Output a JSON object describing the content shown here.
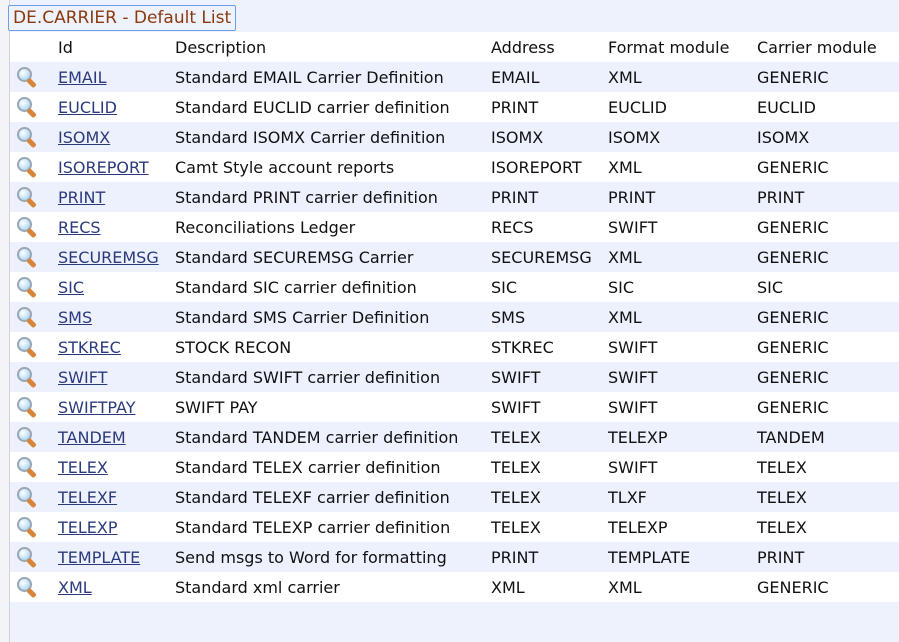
{
  "title": "DE.CARRIER - Default List",
  "columns": [
    "",
    "Id",
    "Description",
    "Address",
    "Format module",
    "Carrier module"
  ],
  "rows": [
    {
      "id": "EMAIL",
      "description": "Standard EMAIL Carrier Definition",
      "address": "EMAIL",
      "format": "XML",
      "carrier": "GENERIC"
    },
    {
      "id": "EUCLID",
      "description": "Standard EUCLID carrier definition",
      "address": "PRINT",
      "format": "EUCLID",
      "carrier": "EUCLID"
    },
    {
      "id": "ISOMX",
      "description": "Standard ISOMX Carrier definition",
      "address": "ISOMX",
      "format": "ISOMX",
      "carrier": "ISOMX"
    },
    {
      "id": "ISOREPORT",
      "description": "Camt Style account reports",
      "address": "ISOREPORT",
      "format": "XML",
      "carrier": "GENERIC"
    },
    {
      "id": "PRINT",
      "description": "Standard PRINT carrier definition",
      "address": "PRINT",
      "format": "PRINT",
      "carrier": "PRINT"
    },
    {
      "id": "RECS",
      "description": "Reconciliations Ledger",
      "address": "RECS",
      "format": "SWIFT",
      "carrier": "GENERIC"
    },
    {
      "id": "SECUREMSG",
      "description": "Standard SECUREMSG Carrier",
      "address": "SECUREMSG",
      "format": "XML",
      "carrier": "GENERIC"
    },
    {
      "id": "SIC",
      "description": "Standard SIC carrier definition",
      "address": "SIC",
      "format": "SIC",
      "carrier": "SIC"
    },
    {
      "id": "SMS",
      "description": "Standard SMS Carrier Definition",
      "address": "SMS",
      "format": "XML",
      "carrier": "GENERIC"
    },
    {
      "id": "STKREC",
      "description": "STOCK RECON",
      "address": "STKREC",
      "format": "SWIFT",
      "carrier": "GENERIC"
    },
    {
      "id": "SWIFT",
      "description": "Standard SWIFT carrier definition",
      "address": "SWIFT",
      "format": "SWIFT",
      "carrier": "GENERIC"
    },
    {
      "id": "SWIFTPAY",
      "description": "SWIFT PAY",
      "address": "SWIFT",
      "format": "SWIFT",
      "carrier": "GENERIC"
    },
    {
      "id": "TANDEM",
      "description": "Standard TANDEM carrier definition",
      "address": "TELEX",
      "format": "TELEXP",
      "carrier": "TANDEM"
    },
    {
      "id": "TELEX",
      "description": "Standard TELEX carrier definition",
      "address": "TELEX",
      "format": "SWIFT",
      "carrier": "TELEX"
    },
    {
      "id": "TELEXF",
      "description": "Standard TELEXF carrier definition",
      "address": "TELEX",
      "format": "TLXF",
      "carrier": "TELEX"
    },
    {
      "id": "TELEXP",
      "description": "Standard TELEXP carrier definition",
      "address": "TELEX",
      "format": "TELEXP",
      "carrier": "TELEX"
    },
    {
      "id": "TEMPLATE",
      "description": "Send msgs to Word for formatting",
      "address": "PRINT",
      "format": "TEMPLATE",
      "carrier": "PRINT"
    },
    {
      "id": "XML",
      "description": "Standard xml carrier",
      "address": "XML",
      "format": "XML",
      "carrier": "GENERIC"
    }
  ],
  "colors": {
    "title": "#8b3a0e",
    "link": "#2b3a7c",
    "row_alt": "#edf1fd",
    "border": "#6f9ee8"
  }
}
